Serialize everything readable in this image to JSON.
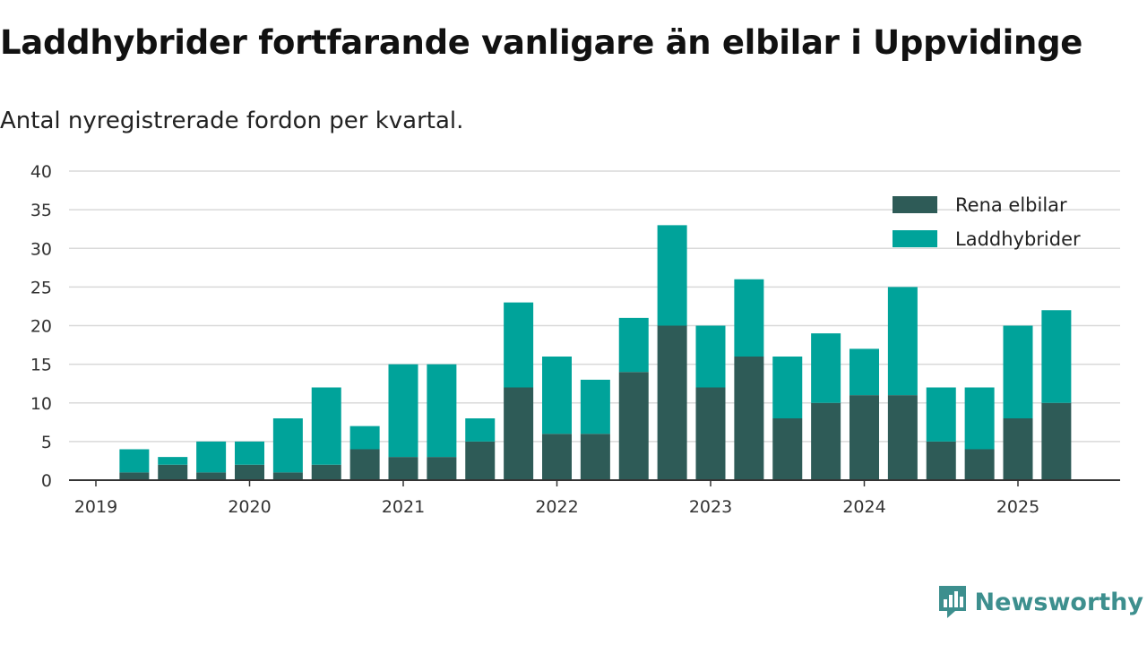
{
  "title": "Laddhybrider fortfarande vanligare än elbilar i Uppvidinge",
  "subtitle": "Antal nyregistrerade fordon per kvartal.",
  "brand": "Newsworthy",
  "colors": {
    "elbilar": "#2e5b57",
    "laddhybrider": "#00a39a",
    "grid": "#d9d9d9",
    "axis": "#333333",
    "brand": "#3d8f8e"
  },
  "chart_data": {
    "type": "bar",
    "stacked": true,
    "categories": [
      "2019-Q2",
      "2019-Q3",
      "2019-Q4",
      "2020-Q1",
      "2020-Q2",
      "2020-Q3",
      "2020-Q4",
      "2021-Q1",
      "2021-Q2",
      "2021-Q3",
      "2021-Q4",
      "2022-Q1",
      "2022-Q2",
      "2022-Q3",
      "2022-Q4",
      "2023-Q1",
      "2023-Q2",
      "2023-Q3",
      "2023-Q4",
      "2024-Q1",
      "2024-Q2",
      "2024-Q3",
      "2024-Q4",
      "2025-Q1",
      "2025-Q2"
    ],
    "series": [
      {
        "name": "Rena elbilar",
        "values": [
          1,
          2,
          1,
          2,
          1,
          2,
          4,
          3,
          3,
          5,
          12,
          6,
          6,
          14,
          20,
          12,
          16,
          8,
          10,
          11,
          11,
          5,
          4,
          8,
          10
        ]
      },
      {
        "name": "Laddhybrider",
        "values": [
          3,
          1,
          4,
          3,
          7,
          10,
          3,
          12,
          12,
          3,
          11,
          10,
          7,
          7,
          13,
          8,
          10,
          8,
          9,
          6,
          14,
          7,
          8,
          12,
          12
        ]
      }
    ],
    "xticks": [
      "2019",
      "2020",
      "2021",
      "2022",
      "2023",
      "2024",
      "2025"
    ],
    "yticks": [
      0,
      5,
      10,
      15,
      20,
      25,
      30,
      35,
      40
    ],
    "ylim": [
      0,
      40
    ],
    "grid": true,
    "legend": "top-right"
  }
}
